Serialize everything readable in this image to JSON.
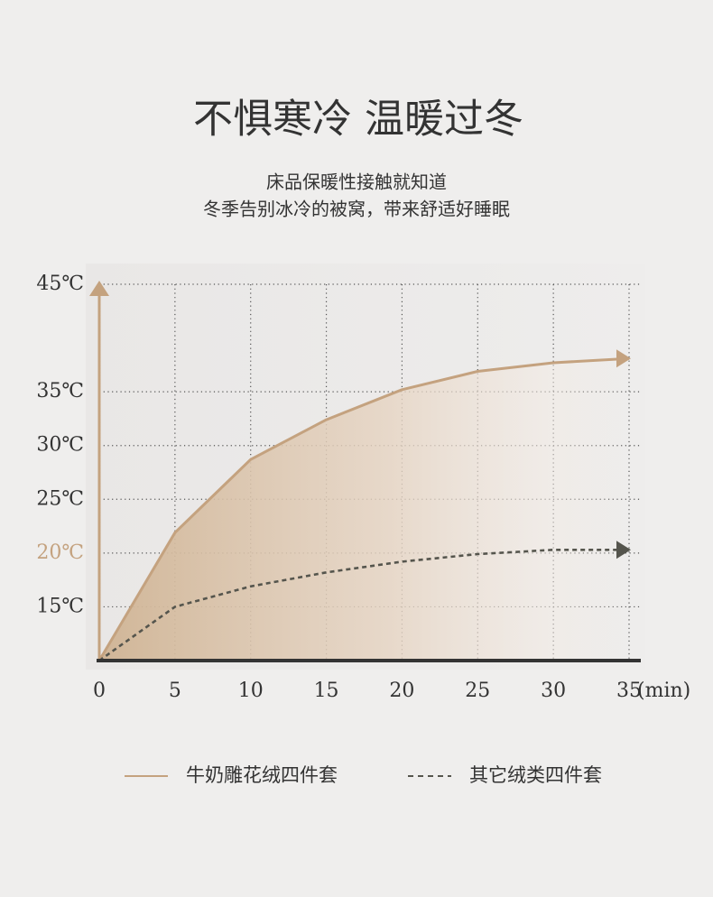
{
  "title": "不惧寒冷 温暖过冬",
  "subtitle": [
    "床品保暖性接触就知道",
    "冬季告别冰冷的被窝，带来舒适好睡眠"
  ],
  "chart_data": {
    "type": "line",
    "x": [
      0,
      5,
      10,
      15,
      20,
      25,
      30,
      35
    ],
    "xlabel": "(min)",
    "series": [
      {
        "name": "牛奶雕花绒四件套",
        "color": "#c4a27f",
        "style": "solid",
        "fill": true,
        "values": [
          10,
          21.9,
          28.7,
          32.4,
          35.2,
          36.9,
          37.7,
          38.1
        ]
      },
      {
        "name": "其它绒类四件套",
        "color": "#55554d",
        "style": "dashed",
        "fill": false,
        "values": [
          10,
          15.0,
          16.9,
          18.2,
          19.2,
          19.9,
          20.3,
          20.3
        ]
      }
    ],
    "xlim": [
      0,
      35
    ],
    "xticks": [
      0,
      5,
      10,
      15,
      20,
      25,
      30,
      35
    ],
    "ylim": [
      10,
      45
    ],
    "yticks": [
      {
        "value": 15,
        "label": "15℃"
      },
      {
        "value": 20,
        "label": "20℃"
      },
      {
        "value": 25,
        "label": "25℃"
      },
      {
        "value": 30,
        "label": "30℃"
      },
      {
        "value": 35,
        "label": "35℃"
      },
      {
        "value": 45,
        "label": "45℃"
      }
    ],
    "highlight_ytick": 20,
    "highlight_color": "#c4a27f",
    "grid": true,
    "legend": "bottom"
  }
}
